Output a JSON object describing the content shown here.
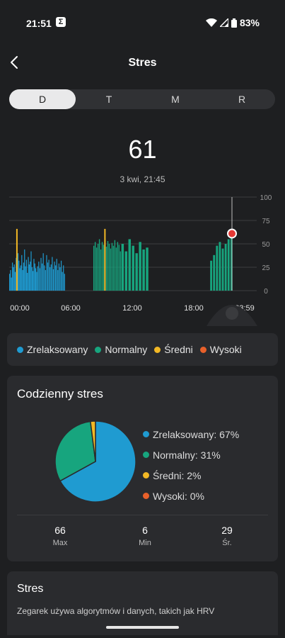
{
  "status": {
    "time": "21:51",
    "app_icon": "Σ",
    "battery": "83%"
  },
  "header": {
    "title": "Stres"
  },
  "tabs": [
    {
      "label": "D",
      "active": true
    },
    {
      "label": "T",
      "active": false
    },
    {
      "label": "M",
      "active": false
    },
    {
      "label": "R",
      "active": false
    }
  ],
  "current": {
    "value": "61",
    "timestamp": "3 kwi, 21:45"
  },
  "chart_data": {
    "type": "bar",
    "x_ticks": [
      "00:00",
      "06:00",
      "12:00",
      "18:00",
      "23:59"
    ],
    "y_ticks": [
      "100",
      "75",
      "50",
      "25",
      "0"
    ],
    "ylim": [
      0,
      100
    ],
    "selected_value": 61,
    "colors": {
      "relaxed": "#1f9bd1",
      "normal": "#17a57e",
      "medium": "#f2b825",
      "high": "#e8602a"
    },
    "segments": [
      {
        "range": "00:00-03:00",
        "level": "relaxed",
        "values": [
          18,
          22,
          14,
          30,
          25,
          28,
          20,
          35,
          26,
          40,
          32,
          24,
          27,
          38,
          22,
          30,
          44,
          26,
          33,
          19,
          36,
          28,
          31,
          42,
          25,
          21,
          34,
          29,
          24,
          20
        ]
      },
      {
        "range": "03:00-06:00",
        "level": "relaxed",
        "values": [
          26,
          31,
          24,
          35,
          29,
          40,
          27,
          22,
          38,
          30,
          33,
          25,
          28,
          36,
          23,
          31,
          27,
          34,
          22,
          29,
          25,
          32,
          20,
          27,
          18
        ]
      },
      {
        "range": "09:00-12:00",
        "level": "normal",
        "values": [
          48,
          52,
          46,
          50,
          55,
          44,
          52,
          49,
          56,
          47,
          53,
          50,
          45,
          51,
          48,
          54,
          46,
          52,
          49,
          42
        ]
      },
      {
        "range": "12:00-15:00",
        "level": "normal",
        "values": [
          50,
          42,
          55,
          48,
          40,
          52,
          44,
          46
        ]
      },
      {
        "range": "21:30-23:59",
        "level": "normal",
        "values": [
          32,
          38,
          48,
          52,
          45,
          50,
          55,
          61
        ]
      }
    ],
    "highlights": [
      {
        "time": "00:45",
        "level": "medium",
        "value": 66
      },
      {
        "time": "10:10",
        "level": "medium",
        "value": 66
      }
    ]
  },
  "legend": [
    {
      "label": "Zrelaksowany",
      "color": "#1f9bd1"
    },
    {
      "label": "Normalny",
      "color": "#17a57e"
    },
    {
      "label": "Średni",
      "color": "#f2b825"
    },
    {
      "label": "Wysoki",
      "color": "#e8602a"
    }
  ],
  "daily": {
    "title": "Codzienny stres",
    "pie": [
      {
        "label": "Zrelaksowany: 67%",
        "value": 67,
        "color": "#1f9bd1"
      },
      {
        "label": "Normalny: 31%",
        "value": 31,
        "color": "#17a57e"
      },
      {
        "label": "Średni: 2%",
        "value": 2,
        "color": "#f2b825"
      },
      {
        "label": "Wysoki: 0%",
        "value": 0,
        "color": "#e8602a"
      }
    ],
    "stats": [
      {
        "value": "66",
        "label": "Max"
      },
      {
        "value": "6",
        "label": "Min"
      },
      {
        "value": "29",
        "label": "Śr."
      }
    ]
  },
  "info": {
    "title": "Stres",
    "text": "Zegarek używa algorytmów i danych, takich jak HRV"
  }
}
